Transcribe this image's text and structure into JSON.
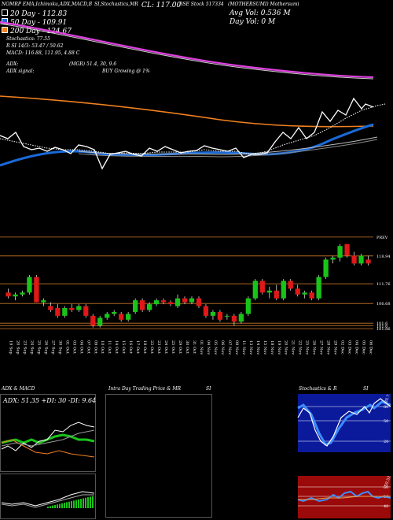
{
  "header": {
    "top_left": "NOMRP EMA,Ichimoku,ADX,MACD,B",
    "top_mid": "SI,Stochastics,MR",
    "top_cl": "CL: 117.00",
    "top_bse": "BSE Stock 517334",
    "top_right": "(MOTHERSUMI) Mothersumi",
    "ema_20": "20  Day - 112.83",
    "ema_50": "50  Day - 109.91",
    "ema_200": "200  Day - 124.67",
    "avg_vol": "Avg Vol: 0.536  M",
    "day_vol": "Day Vol: 0  M",
    "stoch": "Stochastics: 77.55",
    "rsi": "R  SI 14/3: 53.47 / 50.62",
    "macd": "MACD: 116.88,  111.95,  4.88  C",
    "adx": "ADX:",
    "adx_mid": "(MGR) 51.4,  30,  9.6",
    "adx_signal": "ADX  signal:",
    "buy": "BUY Growing  @ 1%"
  },
  "price_levels": [
    {
      "label": "PREV",
      "value": 123.8
    },
    {
      "label": "118.94",
      "value": 118.94
    },
    {
      "label": "111.76",
      "value": 111.76
    },
    {
      "label": "106.68",
      "value": 106.68
    },
    {
      "label": "101.6",
      "value": 101.6
    },
    {
      "label": "101.6",
      "value": 100.9
    },
    {
      "label": "101.86",
      "value": 100.2
    }
  ],
  "panels": {
    "adx_title": "ADX  & MACD",
    "adx_value": "ADX: 51.35  +DI: 30  -DI: 9.64",
    "intraday_title": "Intra Day Trading Price  & MR",
    "intraday_si": "SI",
    "stoch_title": "Stochastics & R",
    "stoch_si": "SI",
    "stoch_ticks": [
      "80",
      "50",
      "20"
    ],
    "rsi_ticks": [
      "60",
      "50",
      "40"
    ],
    "stoch_label": "80.77",
    "rsi_label": "50.52"
  },
  "chart_data": {
    "type": "candlestick",
    "dates": [
      "19 Sep",
      "20 Sep",
      "23 Sep",
      "24 Sep",
      "25 Sep",
      "26 Sep",
      "27 Sep",
      "30 Sep",
      "01 Oct",
      "03 Oct",
      "04 Oct",
      "07 Oct",
      "09 Oct",
      "10 Oct",
      "11 Oct",
      "14 Oct",
      "15 Oct",
      "16 Oct",
      "17 Oct",
      "18 Oct",
      "22 Oct",
      "23 Oct",
      "24 Oct",
      "25 Oct",
      "29 Oct",
      "30 Oct",
      "31 Oct",
      "01 Nov",
      "04 Nov",
      "05 Nov",
      "06 Nov",
      "07 Nov",
      "08 Nov",
      "11 Nov",
      "13 Nov",
      "14 Nov",
      "15 Nov",
      "18 Nov",
      "19 Nov",
      "20 Nov",
      "21 Nov",
      "22 Nov",
      "25 Nov",
      "26 Nov",
      "27 Nov",
      "28 Nov",
      "29 Nov",
      "02 Dec",
      "03 Dec",
      "04 Dec",
      "05 Dec",
      "06 Dec"
    ],
    "ohlc": [
      [
        109.5,
        110.5,
        108,
        108.5
      ],
      [
        108.5,
        109.5,
        107.5,
        109
      ],
      [
        109,
        110,
        108.5,
        109.5
      ],
      [
        109.5,
        114,
        109,
        113.5
      ],
      [
        113.5,
        114,
        107,
        107
      ],
      [
        107,
        108,
        106,
        107.5
      ],
      [
        106,
        107,
        104.5,
        105
      ],
      [
        105.5,
        106.5,
        103,
        103.5
      ],
      [
        103.5,
        106,
        103,
        105.5
      ],
      [
        105.5,
        106.5,
        104.5,
        105
      ],
      [
        105,
        106.5,
        104.5,
        106
      ],
      [
        106,
        106.5,
        103,
        103.5
      ],
      [
        103.5,
        104,
        100.5,
        101
      ],
      [
        101,
        103.5,
        100.5,
        103
      ],
      [
        103,
        104.5,
        102.5,
        104
      ],
      [
        104,
        105,
        103.5,
        104.5
      ],
      [
        104,
        104.5,
        102,
        102.5
      ],
      [
        102.5,
        104.5,
        102,
        104
      ],
      [
        104.5,
        108,
        104,
        107.5
      ],
      [
        107.5,
        108,
        104.5,
        105
      ],
      [
        105,
        107,
        104.5,
        106.5
      ],
      [
        106.5,
        108,
        106,
        107.5
      ],
      [
        107.5,
        108,
        106.5,
        107
      ],
      [
        107,
        107.5,
        106,
        106.5
      ],
      [
        106,
        109,
        105.5,
        108
      ],
      [
        108,
        108.5,
        106.5,
        107
      ],
      [
        107,
        108.5,
        106.5,
        108
      ],
      [
        108,
        108.5,
        105.5,
        106
      ],
      [
        106,
        106.5,
        103,
        103.5
      ],
      [
        103.5,
        105,
        102.5,
        104.5
      ],
      [
        104.5,
        105,
        102,
        102.5
      ],
      [
        103.5,
        104,
        102.5,
        103.5
      ],
      [
        103.5,
        104,
        101,
        102
      ],
      [
        102,
        104.5,
        101.5,
        104
      ],
      [
        104,
        108.5,
        103.5,
        108
      ],
      [
        108,
        113,
        107.5,
        112.5
      ],
      [
        112.5,
        113,
        109,
        109.5
      ],
      [
        109.5,
        111,
        108,
        110
      ],
      [
        110,
        111.5,
        107.5,
        108
      ],
      [
        108,
        113,
        107.5,
        112.5
      ],
      [
        112.5,
        113,
        110,
        110.5
      ],
      [
        110.5,
        111.5,
        108.5,
        109
      ],
      [
        109,
        110,
        108,
        109.5
      ],
      [
        109.5,
        110,
        107.5,
        108
      ],
      [
        108,
        114,
        107.5,
        113.5
      ],
      [
        113.5,
        118.5,
        113,
        118
      ],
      [
        118,
        119,
        117,
        118.5
      ],
      [
        118.5,
        122,
        117.5,
        121.5
      ],
      [
        122,
        122,
        118.5,
        119
      ],
      [
        119,
        120,
        116.5,
        117
      ],
      [
        117,
        119.5,
        116.5,
        119
      ],
      [
        118,
        119,
        116.5,
        117
      ]
    ],
    "ylim": [
      99,
      125
    ],
    "ema": {
      "20": 112.83,
      "50": 109.91,
      "200": 124.67
    }
  }
}
